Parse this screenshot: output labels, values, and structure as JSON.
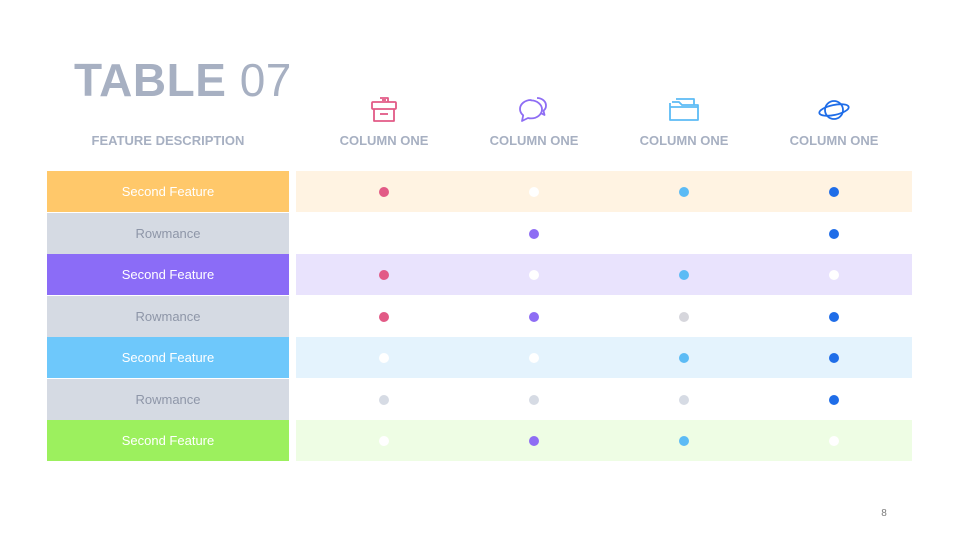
{
  "title": {
    "bold": "TABLE",
    "num": "07"
  },
  "feature_header": "FEATURE DESCRIPTION",
  "columns": [
    {
      "label": "COLUMN ONE",
      "icon": "archive-box-icon",
      "color": "#e25a86"
    },
    {
      "label": "COLUMN ONE",
      "icon": "chat-bubbles-icon",
      "color": "#8e6df4"
    },
    {
      "label": "COLUMN ONE",
      "icon": "folder-icon",
      "color": "#5cbbf5"
    },
    {
      "label": "COLUMN ONE",
      "icon": "planet-icon",
      "color": "#1f6de8"
    }
  ],
  "rows": [
    {
      "label": "Second Feature",
      "label_bg": "#ffc86a",
      "label_color": "#ffffff",
      "band": "#fff3e2",
      "dots": [
        "#e25a86",
        "#ffffff",
        "#5cbbf5",
        "#1f6de8"
      ]
    },
    {
      "label": "Rowmance",
      "label_bg": "#d5dae3",
      "label_color": "#8e96a8",
      "band": "#ffffff",
      "dots": [
        null,
        "#8e6df4",
        null,
        "#1f6de8"
      ]
    },
    {
      "label": "Second Feature",
      "label_bg": "#8b6cf7",
      "label_color": "#ffffff",
      "band": "#e9e3fd",
      "dots": [
        "#e25a86",
        "#ffffff",
        "#5cbbf5",
        "#ffffff"
      ]
    },
    {
      "label": "Rowmance",
      "label_bg": "#d5dae3",
      "label_color": "#8e96a8",
      "band": "#ffffff",
      "dots": [
        "#e25a86",
        "#8e6df4",
        "#d6d6dc",
        "#1f6de8"
      ]
    },
    {
      "label": "Second Feature",
      "label_bg": "#6ec8fb",
      "label_color": "#ffffff",
      "band": "#e4f3fd",
      "dots": [
        "#ffffff",
        "#ffffff",
        "#5cbbf5",
        "#1f6de8"
      ]
    },
    {
      "label": "Rowmance",
      "label_bg": "#d5dae3",
      "label_color": "#8e96a8",
      "band": "#ffffff",
      "dots": [
        "#d6dbe4",
        "#d6dbe4",
        "#d6dbe4",
        "#1f6de8"
      ]
    },
    {
      "label": "Second Feature",
      "label_bg": "#9cf05e",
      "label_color": "#ffffff",
      "band": "#eefde4",
      "dots": [
        "#ffffff",
        "#8e6df4",
        "#5cbbf5",
        "#ffffff"
      ]
    }
  ],
  "page_number": "8"
}
